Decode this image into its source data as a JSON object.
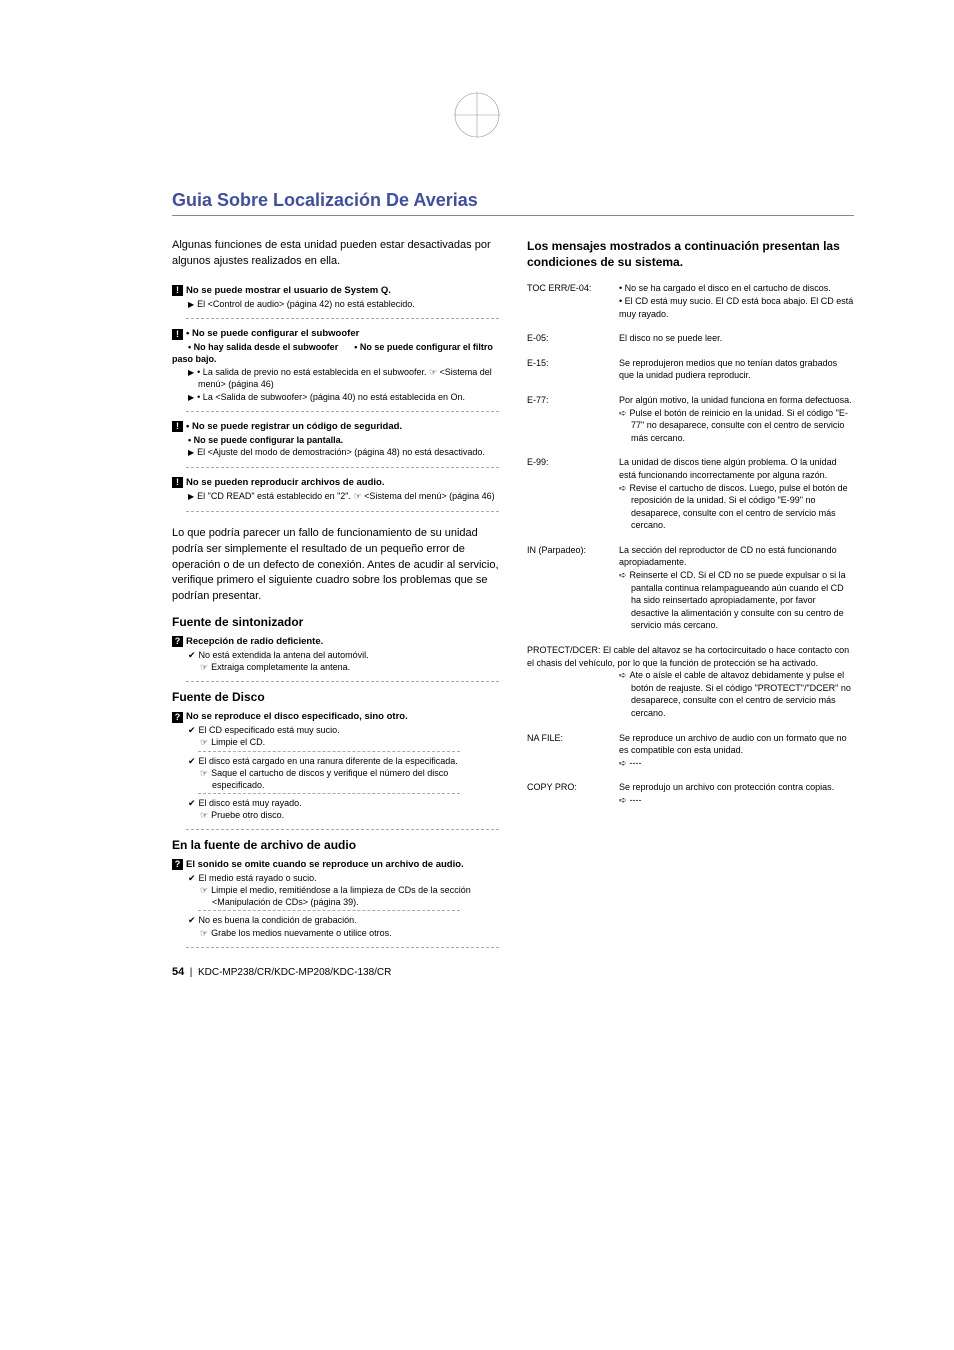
{
  "page": {
    "title": "Guia Sobre Localización De Averias",
    "footer_page": "54",
    "footer_models": "KDC-MP238/CR/KDC-MP208/KDC-138/CR"
  },
  "left": {
    "intro": "Algunas funciones de esta unidad pueden estar desactivadas por algunos ajustes realizados en ella.",
    "blocks": [
      {
        "type": "excl",
        "heading_lines": [
          "No se puede mostrar el usuario de System Q."
        ],
        "tri_lines": [
          "El <Control de audio> (página 42) no está establecido."
        ]
      },
      {
        "type": "excl",
        "heading_lines": [
          "• No se puede configurar el subwoofer",
          "• No hay salida desde el subwoofer",
          "• No se puede configurar el filtro paso bajo."
        ],
        "tri_lines": [
          "• La salida de previo no está establecida en el subwoofer. ☞ <Sistema del menú> (página 46)",
          "• La <Salida de subwoofer> (página 40) no está establecida en On."
        ]
      },
      {
        "type": "excl",
        "heading_lines": [
          "• No se puede registrar un código de seguridad.",
          "• No se puede configurar la pantalla."
        ],
        "tri_lines": [
          "El <Ajuste del modo de demostración> (página 48) no está desactivado."
        ]
      },
      {
        "type": "excl",
        "heading_lines": [
          "No se pueden reproducir archivos de audio."
        ],
        "tri_lines": [
          "El \"CD READ\" está establecido en \"2\". ☞ <Sistema del menú> (página 46)"
        ]
      }
    ],
    "para": "Lo que podría parecer un fallo de funcionamiento de su unidad podría ser simplemente el resultado de un pequeño error de operación o de un defecto de conexión. Antes de acudir al servicio, verifique primero el siguiente cuadro sobre los problemas que se podrían presentar.",
    "sect1": {
      "title": "Fuente de sintonizador",
      "q": [
        {
          "heading": "Recepción de radio deficiente.",
          "items": [
            {
              "chk": "No está extendida la antena del automóvil.",
              "ptr": "Extraiga completamente la antena."
            }
          ]
        }
      ]
    },
    "sect2": {
      "title": "Fuente de Disco",
      "q": [
        {
          "heading": "No se reproduce el disco especificado, sino otro.",
          "items": [
            {
              "chk": "El CD especificado está muy sucio.",
              "ptr": "Limpie el CD."
            },
            {
              "chk": "El disco está cargado en una ranura diferente de la especificada.",
              "ptr": "Saque el cartucho de discos y verifique el número del disco especificado."
            },
            {
              "chk": "El disco está muy rayado.",
              "ptr": "Pruebe otro disco."
            }
          ]
        }
      ]
    },
    "sect3": {
      "title": "En la fuente de archivo de audio",
      "q": [
        {
          "heading": "El sonido se omite cuando se reproduce un archivo de audio.",
          "items": [
            {
              "chk": "El medio está rayado o sucio.",
              "ptr": "Limpie el medio, remitiéndose a la limpieza de CDs de la sección <Manipulación de CDs> (página 39)."
            },
            {
              "chk": "No es buena la condición de grabación.",
              "ptr": "Grabe los medios nuevamente o utilice otros."
            }
          ]
        }
      ]
    }
  },
  "right": {
    "heading": "Los mensajes mostrados a continuación presentan las condiciones de su sistema.",
    "errors": [
      {
        "code": "TOC ERR/E-04:",
        "lines": [
          "• No se ha cargado el disco en el cartucho de discos.",
          "• El CD está muy sucio. El CD está boca abajo. El CD está muy rayado."
        ]
      },
      {
        "code": "E-05:",
        "lines": [
          "El disco no se puede leer."
        ]
      },
      {
        "code": "E-15:",
        "lines": [
          "Se reprodujeron medios que no tenían datos grabados que la unidad pudiera reproducir."
        ]
      },
      {
        "code": "E-77:",
        "lines": [
          "Por algún motivo, la unidad funciona en forma defectuosa."
        ],
        "arr": [
          "Pulse el botón de reinicio en la unidad. Si el código \"E-77\" no desaparece, consulte con el centro de servicio más cercano."
        ]
      },
      {
        "code": "E-99:",
        "lines": [
          "La unidad de discos tiene algún problema. O la unidad está funcionando incorrectamente por alguna razón."
        ],
        "arr": [
          "Revise el cartucho de discos. Luego, pulse el botón de reposición de la unidad. Si el código \"E-99\" no desaparece, consulte con el centro de servicio más cercano."
        ]
      },
      {
        "code": "IN (Parpadeo):",
        "lines": [
          "La sección del reproductor de CD no está funcionando apropiadamente."
        ],
        "arr": [
          "Reinserte el CD. Si el CD no se puede expulsar o si la pantalla continua relampagueando aún cuando el CD ha sido reinsertado apropiadamente, por favor desactive la alimentación y consulte con su centro de servicio más cercano."
        ]
      },
      {
        "code": "PROTECT/DCER:",
        "wide": true,
        "lines": [
          "El cable del altavoz se ha cortocircuitado o hace contacto con el chasis del vehículo, por lo que la función de protección se ha activado."
        ],
        "arr": [
          "Ate o aísle el cable de altavoz debidamente y pulse el botón de reajuste. Si el código \"PROTECT\"/\"DCER\" no desaparece, consulte con el centro de servicio más cercano."
        ]
      },
      {
        "code": "NA FILE:",
        "lines": [
          "Se reproduce un archivo de audio con un formato que no es compatible con esta unidad."
        ],
        "arr": [
          "----"
        ]
      },
      {
        "code": "COPY PRO:",
        "lines": [
          "Se reprodujo un archivo con protección contra copias."
        ],
        "arr": [
          "----"
        ]
      }
    ]
  }
}
